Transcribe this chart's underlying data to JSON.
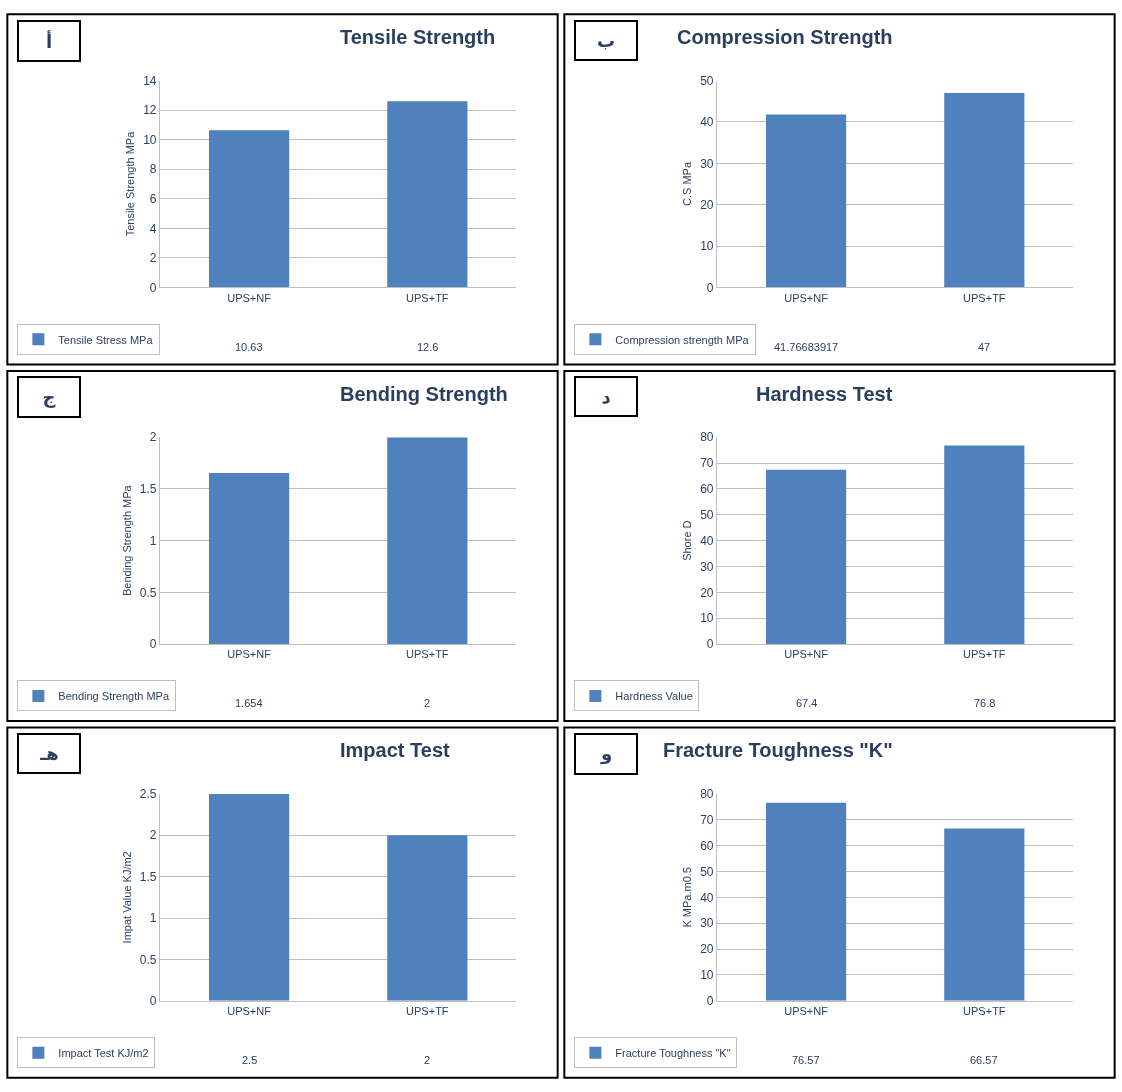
{
  "chart_data": [
    {
      "type": "bar",
      "title": "Tensile Strength",
      "ylabel": "Tensile Strength MPa",
      "annotations": [
        "أ"
      ],
      "categories": [
        "UPS+NF",
        "UPS+TF"
      ],
      "series": [
        {
          "name": "Tensile Stress MPa",
          "color": "#4f81bd",
          "values": [
            10.63,
            12.6
          ]
        }
      ],
      "ylim": [
        0,
        14
      ],
      "yticks": [
        0,
        2,
        4,
        6,
        8,
        10,
        12,
        14
      ],
      "grid": "y",
      "legend": "bottom left",
      "data_labels": true
    },
    {
      "type": "bar",
      "title": "Compression Strength",
      "ylabel": "C.S MPa",
      "annotations": [
        "ب"
      ],
      "categories": [
        "UPS+NF",
        "UPS+TF"
      ],
      "series": [
        {
          "name": "Compression strength MPa",
          "color": "#4f81bd",
          "values": [
            41.76683917,
            47
          ]
        }
      ],
      "ylim": [
        0,
        50
      ],
      "yticks": [
        0,
        10,
        20,
        30,
        40,
        50
      ],
      "grid": "y",
      "legend": "bottom left",
      "data_labels": true
    },
    {
      "type": "bar",
      "title": "Bending Strength",
      "ylabel": "Bending Strength MPa",
      "annotations": [
        "ج"
      ],
      "categories": [
        "UPS+NF",
        "UPS+TF"
      ],
      "series": [
        {
          "name": "Bending Strength MPa",
          "color": "#4f81bd",
          "values": [
            1.654,
            2
          ]
        }
      ],
      "ylim": [
        0,
        2
      ],
      "yticks": [
        0,
        0.5,
        1,
        1.5,
        2
      ],
      "grid": "y",
      "legend": "bottom left",
      "data_labels": true
    },
    {
      "type": "bar",
      "title": "Hardness Test",
      "ylabel": "Shore D",
      "annotations": [
        "د"
      ],
      "categories": [
        "UPS+NF",
        "UPS+TF"
      ],
      "series": [
        {
          "name": "Hardness Value",
          "color": "#4f81bd",
          "values": [
            67.4,
            76.8
          ]
        }
      ],
      "ylim": [
        0,
        80
      ],
      "yticks": [
        0,
        10,
        20,
        30,
        40,
        50,
        60,
        70,
        80
      ],
      "grid": "y",
      "legend": "bottom left",
      "data_labels": true
    },
    {
      "type": "bar",
      "title": "Impact Test",
      "ylabel": "Impat Value KJ/m2",
      "annotations": [
        "هـ"
      ],
      "categories": [
        "UPS+NF",
        "UPS+TF"
      ],
      "series": [
        {
          "name": "Impact Test KJ/m2",
          "color": "#4f81bd",
          "values": [
            2.5,
            2
          ]
        }
      ],
      "ylim": [
        0,
        2.5
      ],
      "yticks": [
        0,
        0.5,
        1,
        1.5,
        2,
        2.5
      ],
      "grid": "y",
      "legend": "bottom left",
      "data_labels": true
    },
    {
      "type": "bar",
      "title": "Fracture Toughness \"K\"",
      "ylabel": "K MPa.m0.5",
      "annotations": [
        "و"
      ],
      "categories": [
        "UPS+NF",
        "UPS+TF"
      ],
      "series": [
        {
          "name": "Fracture Toughness \"K\"",
          "color": "#4f81bd",
          "values": [
            76.57,
            66.57
          ]
        }
      ],
      "ylim": [
        0,
        80
      ],
      "yticks": [
        0,
        10,
        20,
        30,
        40,
        50,
        60,
        70,
        80
      ],
      "grid": "y",
      "legend": "bottom left",
      "data_labels": true
    }
  ]
}
